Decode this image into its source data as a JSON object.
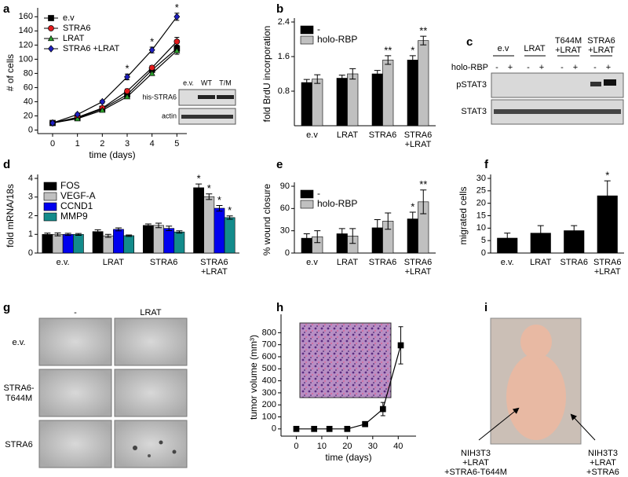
{
  "chart_data": [
    {
      "type": "line",
      "label": "a",
      "xlabel": "time (days)",
      "ylabel": "# of cells",
      "x": [
        0,
        1,
        2,
        3,
        4,
        5
      ],
      "xlim": [
        -0.6,
        5.4
      ],
      "ylim": [
        -5,
        167
      ],
      "xticks": [
        0,
        1,
        2,
        3,
        4,
        5
      ],
      "yticks": [
        0,
        20,
        40,
        60,
        80,
        100,
        120,
        140,
        160
      ],
      "legend": "upper left",
      "series": [
        {
          "name": "e.v",
          "color": "#000000",
          "marker": "square",
          "values": [
            10,
            17,
            30,
            50,
            85,
            115
          ],
          "errors": [
            1,
            1,
            1.5,
            3,
            3,
            5
          ],
          "significance": [
            null,
            null,
            null,
            null,
            null,
            null
          ]
        },
        {
          "name": "STRA6",
          "color": "#e31a1c",
          "marker": "circle",
          "values": [
            10,
            18,
            31,
            55,
            88,
            125
          ],
          "errors": [
            1,
            1,
            1.5,
            3,
            3,
            6
          ],
          "significance": [
            null,
            null,
            null,
            null,
            null,
            null
          ]
        },
        {
          "name": "LRAT",
          "color": "#2ca02c",
          "marker": "triangle",
          "values": [
            10,
            16,
            28,
            47,
            80,
            112
          ],
          "errors": [
            1,
            1,
            1.5,
            2,
            3,
            5
          ],
          "significance": [
            null,
            null,
            null,
            null,
            null,
            null
          ]
        },
        {
          "name": "STRA6 +LRAT",
          "color": "#1f1fbf",
          "marker": "diamond",
          "values": [
            10,
            22,
            40,
            75,
            113,
            160
          ],
          "errors": [
            1,
            2,
            2,
            4,
            4,
            5
          ],
          "significance": [
            null,
            null,
            null,
            "*",
            "*",
            "*"
          ]
        }
      ]
    },
    {
      "type": "bar",
      "label": "b",
      "ylabel": "fold BrdU incorporation",
      "categories": [
        "e.v",
        "LRAT",
        "STRA6",
        [
          "STRA6",
          "+LRAT"
        ]
      ],
      "ylim": [
        0,
        2.4
      ],
      "yticks": [
        0.8,
        1.6,
        2.4
      ],
      "legend": "upper left",
      "series": [
        {
          "name": "-",
          "color": "#000000",
          "values": [
            1.0,
            1.1,
            1.2,
            1.52
          ],
          "errors": [
            0.07,
            0.07,
            0.08,
            0.1
          ],
          "significance": [
            null,
            null,
            null,
            "*"
          ]
        },
        {
          "name": "holo-RBP",
          "color": "#c0c0c0",
          "values": [
            1.08,
            1.2,
            1.52,
            1.97
          ],
          "errors": [
            0.1,
            0.12,
            0.1,
            0.1
          ],
          "significance": [
            null,
            null,
            "**",
            "**"
          ]
        }
      ]
    },
    {
      "type": "bar",
      "label": "d",
      "ylabel": "fold mRNA/18s",
      "categories": [
        "e.v.",
        "LRAT",
        "STRA6",
        [
          "STRA6",
          "+LRAT"
        ]
      ],
      "ylim": [
        0,
        4
      ],
      "yticks": [
        0,
        1,
        2,
        3,
        4
      ],
      "legend": "upper left",
      "series": [
        {
          "name": "FOS",
          "color": "#000000",
          "values": [
            1.0,
            1.15,
            1.48,
            3.5
          ],
          "errors": [
            0.07,
            0.1,
            0.08,
            0.2
          ],
          "significance": [
            null,
            null,
            null,
            "*"
          ]
        },
        {
          "name": "VEGF-A",
          "color": "#c0c0c0",
          "values": [
            1.0,
            0.92,
            1.48,
            3.02
          ],
          "errors": [
            0.08,
            0.08,
            0.12,
            0.15
          ],
          "significance": [
            null,
            null,
            null,
            "*"
          ]
        },
        {
          "name": "CCND1",
          "color": "#0000ee",
          "values": [
            1.0,
            1.27,
            1.32,
            2.4
          ],
          "errors": [
            0.06,
            0.08,
            0.12,
            0.15
          ],
          "significance": [
            null,
            null,
            null,
            "*"
          ]
        },
        {
          "name": "MMP9",
          "color": "#138b8b",
          "values": [
            1.0,
            0.93,
            1.13,
            1.9
          ],
          "errors": [
            0.05,
            0.04,
            0.06,
            0.09
          ],
          "significance": [
            null,
            null,
            null,
            "*"
          ]
        }
      ]
    },
    {
      "type": "bar",
      "label": "e",
      "ylabel": "% wound closure",
      "categories": [
        "e.v",
        "LRAT",
        "STRA6",
        [
          "STRA6",
          "+LRAT"
        ]
      ],
      "ylim": [
        0,
        90
      ],
      "yticks": [
        0,
        30,
        60,
        90
      ],
      "legend": "upper left",
      "series": [
        {
          "name": "-",
          "color": "#000000",
          "values": [
            20,
            26,
            34,
            46
          ],
          "errors": [
            6,
            7,
            11,
            9
          ],
          "significance": [
            null,
            null,
            null,
            "*"
          ]
        },
        {
          "name": "holo-RBP",
          "color": "#c0c0c0",
          "values": [
            22,
            23,
            43,
            69
          ],
          "errors": [
            8,
            10,
            11,
            16
          ],
          "significance": [
            null,
            null,
            null,
            "**"
          ]
        }
      ]
    },
    {
      "type": "bar",
      "label": "f",
      "ylabel": "migrated cells",
      "categories": [
        "e.v.",
        "LRAT",
        "STRA6",
        [
          "STRA6",
          "+LRAT"
        ]
      ],
      "ylim": [
        0,
        30
      ],
      "yticks": [
        0,
        5,
        10,
        15,
        20,
        25,
        30
      ],
      "series": [
        {
          "color": "#000000",
          "values": [
            6,
            8,
            9,
            23
          ],
          "errors": [
            2,
            3,
            2,
            6
          ],
          "significance": [
            null,
            null,
            null,
            "*"
          ]
        }
      ]
    },
    {
      "type": "line",
      "label": "h",
      "xlabel": "time (days)",
      "ylabel": "tumor volume (mm³)",
      "x": [
        0,
        7,
        13,
        20,
        27,
        34,
        41
      ],
      "xlim": [
        -6,
        47
      ],
      "ylim": [
        -60,
        920
      ],
      "xticks": [
        0,
        10,
        20,
        30,
        40
      ],
      "yticks": [
        0,
        100,
        200,
        300,
        400,
        500,
        600,
        700,
        800
      ],
      "series": [
        {
          "color": "#000000",
          "marker": "square",
          "values": [
            0,
            0,
            0,
            0,
            40,
            165,
            695
          ],
          "errors": [
            0,
            0,
            0,
            0,
            8,
            55,
            155
          ],
          "significance": [
            null,
            null,
            null,
            null,
            null,
            null,
            null
          ]
        }
      ]
    }
  ],
  "blot_a": {
    "lanes": [
      "e.v.",
      "WT",
      "T/M"
    ],
    "rows": [
      "his-STRA6",
      "actin"
    ]
  },
  "blot_c": {
    "label": "c",
    "lanes": [
      "e.v",
      "LRAT",
      [
        "T644M",
        "+LRAT"
      ],
      [
        "STRA6",
        "+LRAT"
      ]
    ],
    "treatment": "holo-RBP",
    "signs": [
      "-",
      "+",
      "-",
      "+",
      "-",
      "+",
      "-",
      "+"
    ],
    "rows": [
      "pSTAT3",
      "STAT3"
    ]
  },
  "images_g": {
    "label": "g",
    "columns": [
      "-",
      "LRAT"
    ],
    "rows": [
      "e.v.",
      [
        "STRA6-",
        "T644M"
      ],
      "STRA6"
    ]
  },
  "photo_i": {
    "label": "i",
    "left": [
      "NIH3T3",
      "+LRAT",
      "+STRA6-T644M"
    ],
    "right": [
      "NIH3T3",
      "+LRAT",
      "+STRA6"
    ]
  }
}
